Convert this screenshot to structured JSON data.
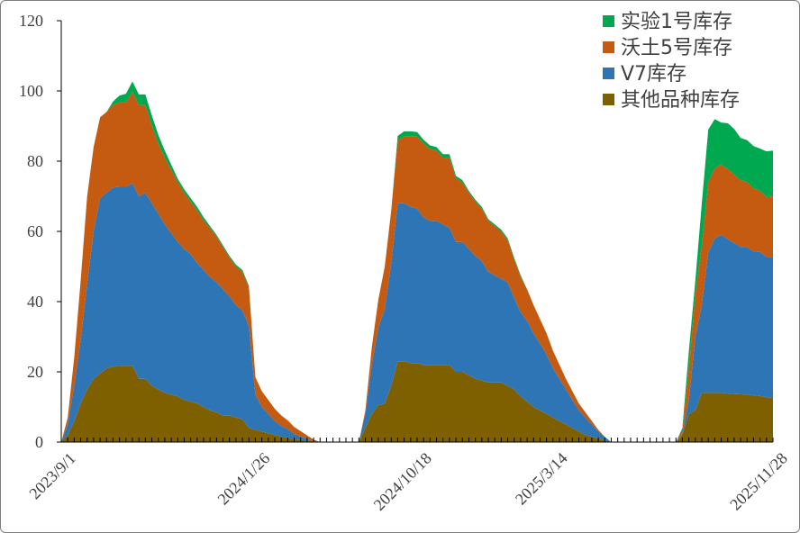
{
  "chart_data": {
    "type": "area",
    "title": "",
    "xlabel": "",
    "ylabel": "",
    "ylim": [
      0,
      120
    ],
    "yticks": [
      0,
      20,
      40,
      60,
      80,
      100,
      120
    ],
    "x_count": 111,
    "x_labels": [
      {
        "index": 0,
        "label": "2023/9/1"
      },
      {
        "index": 30,
        "label": "2024/1/26"
      },
      {
        "index": 55,
        "label": "2024/10/18"
      },
      {
        "index": 76,
        "label": "2025/3/14"
      },
      {
        "index": 110,
        "label": "2025/11/28"
      }
    ],
    "legend_position": "top-right",
    "legend": [
      "实验1号库存",
      "沃土5号库存",
      "V7库存",
      "其他品种库存"
    ],
    "colors": {
      "实验1号库存": "#00a850",
      "沃土5号库存": "#c55a11",
      "V7库存": "#2e75b6",
      "其他品种库存": "#7f6000"
    },
    "series": [
      {
        "name": "实验1号库存",
        "segments": [
          {
            "start": 0,
            "values": [
              0,
              0,
              0,
              0,
              0,
              0,
              0,
              0,
              1,
              2,
              2.5,
              3,
              3,
              3,
              3,
              2.5,
              2,
              1.5,
              1,
              1,
              1,
              1,
              1,
              0.5,
              0.5,
              0.5,
              0.5,
              0.5,
              0.5,
              0.5,
              0,
              0,
              0,
              0,
              0,
              0,
              0,
              0,
              0,
              0,
              0,
              0,
              0,
              0
            ]
          },
          {
            "start": 46,
            "values": [
              0,
              0,
              0,
              0,
              0,
              0,
              1.2,
              1.5,
              1.5,
              1.3,
              1.1,
              1,
              1,
              1,
              1,
              0.8,
              0.6,
              0.5,
              0.5,
              0.5,
              0.5,
              0.5,
              0.5,
              0.5,
              0.5,
              0.5,
              0,
              0,
              0,
              0,
              0,
              0,
              0,
              0,
              0,
              0,
              0,
              0,
              0,
              0,
              0,
              0,
              0
            ]
          },
          {
            "start": 95,
            "values": [
              0,
              0.5,
              5,
              4,
              12,
              15,
              14,
              12,
              13,
              13,
              12,
              12,
              12,
              12,
              13,
              13
            ]
          }
        ]
      },
      {
        "name": "沃土5号库存",
        "segments": [
          {
            "start": 0,
            "values": [
              0,
              2,
              8,
              17,
              25,
              24,
              23,
              23,
              23.5,
              24,
              24,
              26,
              26,
              25,
              22,
              20,
              19,
              18,
              17,
              16,
              15,
              15,
              14,
              14,
              13,
              12,
              11,
              11,
              11,
              11,
              5,
              4.5,
              4,
              3.5,
              3,
              2.5,
              2,
              1.5,
              1,
              0.5,
              0,
              0,
              0,
              0
            ]
          },
          {
            "start": 46,
            "values": [
              0,
              1,
              5,
              8,
              12,
              15,
              18,
              19,
              20,
              20.5,
              21,
              20.5,
              20,
              19,
              20,
              18,
              17,
              16,
              15.5,
              15,
              14.5,
              14,
              13.5,
              12,
              11,
              10,
              9,
              8,
              7,
              6,
              5,
              4,
              3,
              2.5,
              2,
              1.5,
              1,
              0.5,
              0,
              0,
              0,
              0,
              0
            ]
          },
          {
            "start": 95,
            "values": [
              0,
              1,
              9,
              12,
              17,
              20,
              20,
              20,
              20,
              19.5,
              19,
              18.5,
              18,
              17.5,
              17,
              17.5
            ]
          }
        ]
      },
      {
        "name": "V7库存",
        "segments": [
          {
            "start": 0,
            "values": [
              0,
              3,
              10,
              18,
              30,
              42,
              50,
              50,
              51,
              51,
              51,
              52,
              52,
              53,
              52,
              50,
              48,
              46,
              44,
              43,
              42,
              40,
              39,
              38,
              37,
              36,
              34,
              32,
              31,
              29,
              10,
              7,
              5.5,
              4,
              3,
              2.5,
              1.5,
              1,
              0.5,
              0,
              0,
              0,
              0,
              0
            ]
          },
          {
            "start": 46,
            "values": [
              0,
              4,
              14,
              22,
              27,
              35,
              45,
              45,
              44.5,
              44,
              42,
              41,
              41,
              40,
              39,
              37,
              37,
              36,
              35,
              34,
              31.5,
              30.5,
              29.5,
              29.5,
              26,
              24,
              23,
              21,
              19,
              17,
              14,
              12,
              10,
              8,
              6,
              5,
              3.5,
              2,
              1,
              0,
              0,
              0,
              0
            ]
          },
          {
            "start": 95,
            "values": [
              0,
              0.5,
              4,
              21,
              25,
              40,
              44,
              45,
              44,
              43,
              42,
              42,
              41,
              41,
              40,
              40
            ]
          }
        ]
      },
      {
        "name": "其他品种库存",
        "segments": [
          {
            "start": 0,
            "values": [
              0,
              2,
              6,
              11,
              15,
              18,
              19.5,
              21,
              21.5,
              21.7,
              21.7,
              21.7,
              18,
              18,
              16,
              15,
              14,
              13.5,
              13,
              12,
              11.5,
              11,
              10,
              9,
              8.5,
              7.5,
              7.5,
              7,
              6.5,
              4,
              3.5,
              3,
              2.5,
              2,
              1.6,
              1.2,
              0.8,
              0.6,
              0.4,
              0.2,
              0,
              0,
              0,
              0
            ]
          },
          {
            "start": 46,
            "values": [
              0,
              4,
              8,
              10.5,
              11,
              16,
              23,
              23,
              22.5,
              22.5,
              22,
              22,
              22,
              22,
              22,
              20,
              20,
              19,
              18,
              17.5,
              17,
              17,
              17,
              16,
              15,
              13,
              11.5,
              10,
              9,
              8,
              7,
              6,
              5,
              4,
              3,
              2,
              1.5,
              1,
              0.5,
              0,
              0,
              0,
              0
            ]
          },
          {
            "start": 95,
            "values": [
              0,
              2,
              8,
              9,
              14,
              14,
              14,
              14,
              13.8,
              13.7,
              13.6,
              13.5,
              13.3,
              13.1,
              12.8,
              12.5
            ]
          }
        ]
      }
    ]
  }
}
